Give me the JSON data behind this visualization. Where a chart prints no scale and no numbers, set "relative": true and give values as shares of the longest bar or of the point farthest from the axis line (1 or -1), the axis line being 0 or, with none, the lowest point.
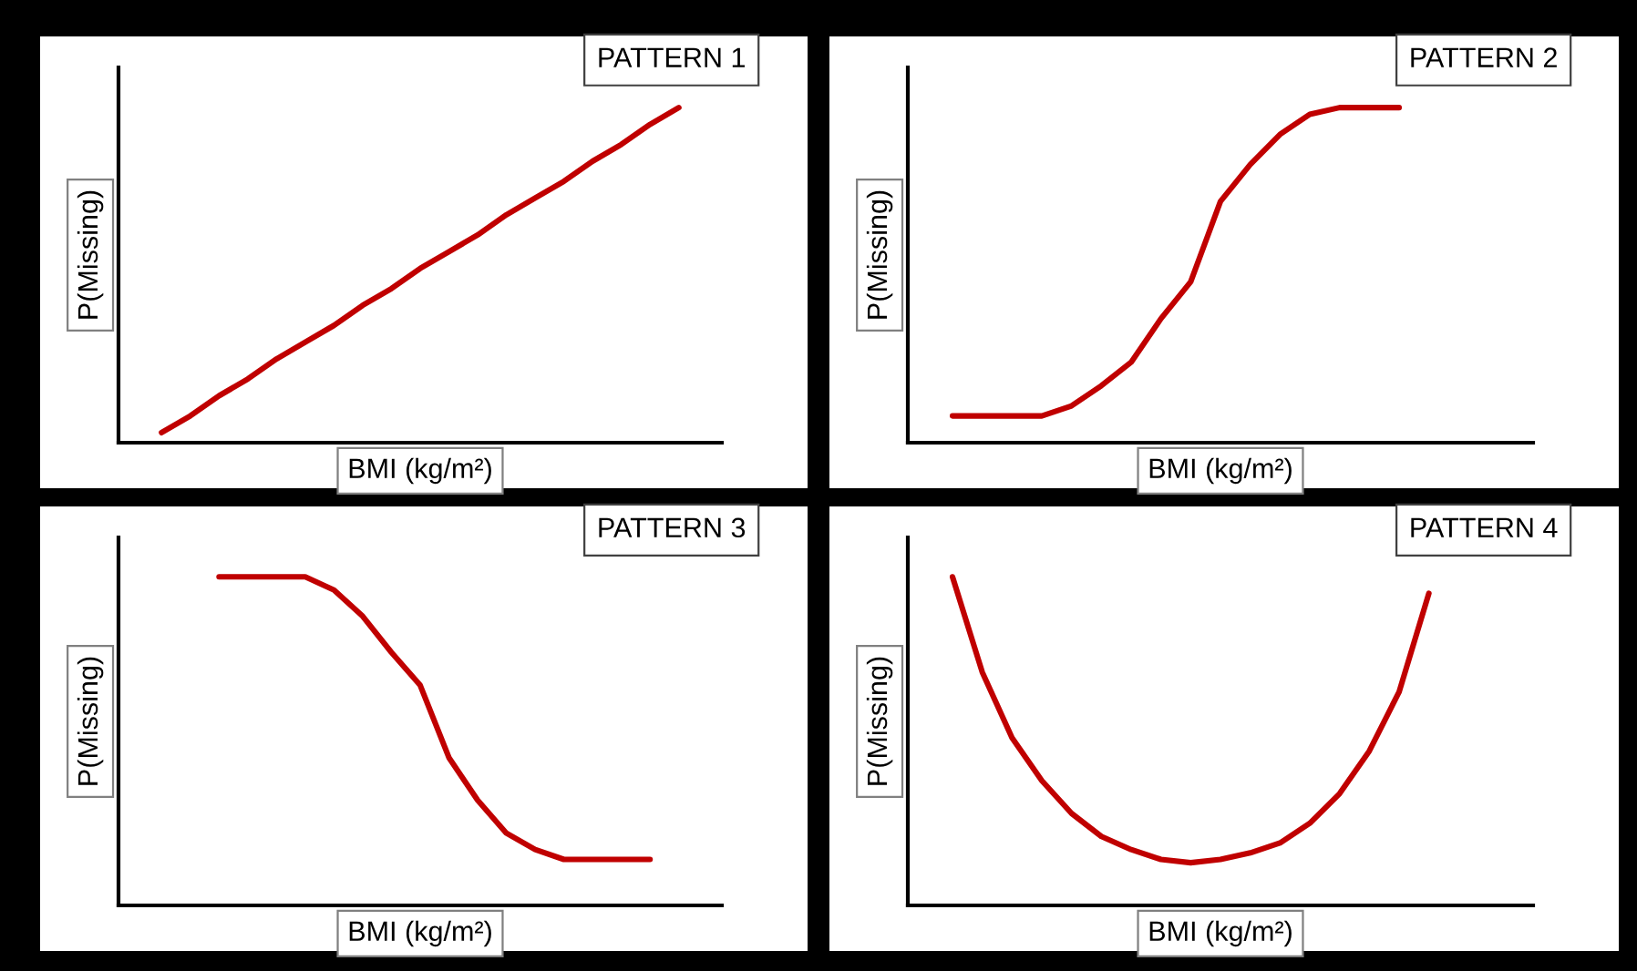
{
  "chart_data": [
    {
      "type": "line",
      "title": "PATTERN 1",
      "xlabel": "BMI (kg/m²)",
      "ylabel": "P(Missing)",
      "relative": true,
      "tick_labels": false,
      "grid": false,
      "legend": false,
      "categories": [
        null,
        null,
        null,
        null,
        null,
        null,
        null,
        null,
        null,
        null,
        null,
        null,
        null,
        null,
        null,
        null,
        null,
        null,
        null,
        null,
        null
      ],
      "series": [
        {
          "color": "#c00000",
          "values": [
            null,
            0.03,
            0.08,
            0.14,
            0.19,
            0.25,
            0.3,
            0.35,
            0.41,
            0.46,
            0.52,
            0.57,
            0.62,
            0.68,
            0.73,
            0.78,
            0.84,
            0.89,
            0.95,
            1,
            null
          ]
        }
      ]
    },
    {
      "type": "line",
      "title": "PATTERN 2",
      "xlabel": "BMI (kg/m²)",
      "ylabel": "P(Missing)",
      "relative": true,
      "tick_labels": false,
      "grid": false,
      "legend": false,
      "categories": [
        null,
        null,
        null,
        null,
        null,
        null,
        null,
        null,
        null,
        null,
        null,
        null,
        null,
        null,
        null,
        null,
        null,
        null,
        null,
        null,
        null
      ],
      "series": [
        {
          "color": "#c00000",
          "values": [
            null,
            0.08,
            0.08,
            0.08,
            0.08,
            0.11,
            0.17,
            0.24,
            0.37,
            0.48,
            0.72,
            0.83,
            0.92,
            0.98,
            1,
            1,
            1,
            null,
            null,
            null,
            null
          ]
        }
      ]
    },
    {
      "type": "line",
      "title": "PATTERN 3",
      "xlabel": "BMI (kg/m²)",
      "ylabel": "P(Missing)",
      "relative": true,
      "tick_labels": false,
      "grid": false,
      "legend": false,
      "categories": [
        null,
        null,
        null,
        null,
        null,
        null,
        null,
        null,
        null,
        null,
        null,
        null,
        null,
        null,
        null,
        null,
        null,
        null,
        null,
        null,
        null
      ],
      "series": [
        {
          "color": "#c00000",
          "values": [
            null,
            null,
            null,
            1,
            1,
            1,
            1,
            0.96,
            0.88,
            0.77,
            0.67,
            0.45,
            0.32,
            0.22,
            0.17,
            0.14,
            0.14,
            0.14,
            0.14,
            null,
            null
          ]
        }
      ]
    },
    {
      "type": "line",
      "title": "PATTERN 4",
      "xlabel": "BMI (kg/m²)",
      "ylabel": "P(Missing)",
      "relative": true,
      "tick_labels": false,
      "grid": false,
      "legend": false,
      "categories": [
        null,
        null,
        null,
        null,
        null,
        null,
        null,
        null,
        null,
        null,
        null,
        null,
        null,
        null,
        null,
        null,
        null,
        null,
        null,
        null,
        null
      ],
      "series": [
        {
          "color": "#c00000",
          "values": [
            null,
            1,
            0.71,
            0.51,
            0.38,
            0.28,
            0.21,
            0.17,
            0.14,
            0.13,
            0.14,
            0.16,
            0.19,
            0.25,
            0.34,
            0.47,
            0.65,
            0.95,
            null,
            null,
            null
          ]
        }
      ]
    }
  ]
}
